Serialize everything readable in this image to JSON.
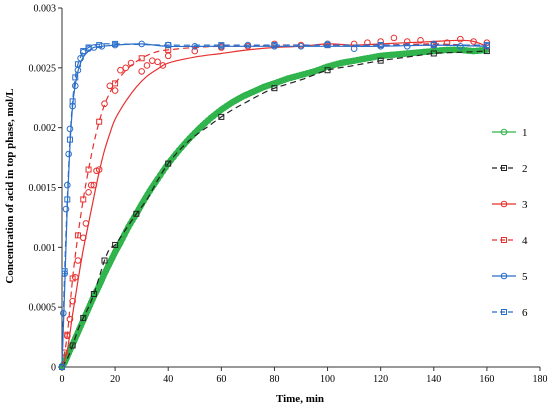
{
  "chart_data": {
    "type": "line",
    "xlabel": "Time, min",
    "ylabel": "Concentration of  acid in top phase, mol/L",
    "xlim": [
      0,
      180
    ],
    "ylim": [
      0,
      0.003
    ],
    "x_ticks": [
      "0",
      "20",
      "40",
      "60",
      "80",
      "100",
      "120",
      "140",
      "160",
      "180"
    ],
    "y_ticks": [
      "0",
      "0.0005",
      "0.001",
      "0.0015",
      "0.002",
      "0.0025",
      "0.003"
    ],
    "legend_position": "right",
    "series": [
      {
        "name": "1",
        "color": "#2db34a",
        "dash": "solid",
        "marker": "circle",
        "dense": true,
        "points": [
          [
            0,
            0
          ],
          [
            1,
            4e-05
          ],
          [
            2,
            9e-05
          ],
          [
            4,
            0.00019
          ],
          [
            6,
            0.00029
          ],
          [
            8,
            0.00039
          ],
          [
            10,
            0.00049
          ],
          [
            12,
            0.00059
          ],
          [
            14,
            0.00068
          ],
          [
            16,
            0.00078
          ],
          [
            18,
            0.00087
          ],
          [
            20,
            0.00096
          ],
          [
            22,
            0.00104
          ],
          [
            25,
            0.00117
          ],
          [
            28,
            0.00128
          ],
          [
            30,
            0.00136
          ],
          [
            33,
            0.00147
          ],
          [
            36,
            0.00157
          ],
          [
            40,
            0.0017
          ],
          [
            44,
            0.00181
          ],
          [
            48,
            0.00191
          ],
          [
            52,
            0.002
          ],
          [
            56,
            0.00208
          ],
          [
            60,
            0.00215
          ],
          [
            64,
            0.00221
          ],
          [
            68,
            0.00226
          ],
          [
            72,
            0.0023
          ],
          [
            76,
            0.00234
          ],
          [
            80,
            0.00237
          ],
          [
            85,
            0.00241
          ],
          [
            90,
            0.00244
          ],
          [
            95,
            0.00247
          ],
          [
            100,
            0.00251
          ],
          [
            105,
            0.00254
          ],
          [
            110,
            0.00256
          ],
          [
            115,
            0.00258
          ],
          [
            120,
            0.0026
          ],
          [
            125,
            0.00261
          ],
          [
            130,
            0.00262
          ],
          [
            135,
            0.00263
          ],
          [
            140,
            0.00264
          ],
          [
            145,
            0.00265
          ],
          [
            150,
            0.00265
          ],
          [
            155,
            0.00264
          ],
          [
            160,
            0.00265
          ]
        ]
      },
      {
        "name": "2",
        "color": "#222222",
        "dash": "dashed",
        "marker": "square",
        "dense": false,
        "points": [
          [
            0,
            0
          ],
          [
            2,
            7e-05
          ],
          [
            4,
            0.00018
          ],
          [
            6,
            0.00031
          ],
          [
            8,
            0.00041
          ],
          [
            10,
            0.0005
          ],
          [
            12,
            0.00061
          ],
          [
            14,
            0.00075
          ],
          [
            16,
            0.00089
          ],
          [
            18,
            0.00099
          ],
          [
            20,
            0.00102
          ],
          [
            24,
            0.00115
          ],
          [
            28,
            0.00128
          ],
          [
            32,
            0.0014
          ],
          [
            36,
            0.00156
          ],
          [
            40,
            0.0017
          ],
          [
            45,
            0.00183
          ],
          [
            50,
            0.00193
          ],
          [
            55,
            0.00201
          ],
          [
            60,
            0.00209
          ],
          [
            65,
            0.00216
          ],
          [
            70,
            0.00222
          ],
          [
            75,
            0.00228
          ],
          [
            80,
            0.00233
          ],
          [
            90,
            0.0024
          ],
          [
            100,
            0.00248
          ],
          [
            110,
            0.00252
          ],
          [
            120,
            0.00256
          ],
          [
            130,
            0.00259
          ],
          [
            140,
            0.00262
          ],
          [
            150,
            0.00263
          ],
          [
            160,
            0.00264
          ]
        ],
        "marker_points": [
          [
            0,
            0
          ],
          [
            4,
            0.00018
          ],
          [
            8,
            0.00041
          ],
          [
            12,
            0.00061
          ],
          [
            16,
            0.00089
          ],
          [
            20,
            0.00102
          ],
          [
            28,
            0.00128
          ],
          [
            40,
            0.0017
          ],
          [
            60,
            0.00209
          ],
          [
            80,
            0.00233
          ],
          [
            100,
            0.00248
          ],
          [
            120,
            0.00256
          ],
          [
            140,
            0.00262
          ],
          [
            160,
            0.00264
          ]
        ]
      },
      {
        "name": "3",
        "color": "#e8302e",
        "dash": "solid",
        "marker": "circle",
        "dense": false,
        "points": [
          [
            0,
            0
          ],
          [
            2,
            0.00014
          ],
          [
            4,
            0.00044
          ],
          [
            6,
            0.00072
          ],
          [
            8,
            0.00098
          ],
          [
            10,
            0.0012
          ],
          [
            12,
            0.00142
          ],
          [
            14,
            0.00163
          ],
          [
            16,
            0.00181
          ],
          [
            18,
            0.00195
          ],
          [
            20,
            0.00207
          ],
          [
            24,
            0.00222
          ],
          [
            28,
            0.00234
          ],
          [
            32,
            0.00243
          ],
          [
            36,
            0.00249
          ],
          [
            40,
            0.00254
          ],
          [
            50,
            0.00259
          ],
          [
            60,
            0.00262
          ],
          [
            70,
            0.00265
          ],
          [
            80,
            0.00267
          ],
          [
            90,
            0.00268
          ],
          [
            100,
            0.0027
          ],
          [
            110,
            0.00269
          ],
          [
            120,
            0.0027
          ],
          [
            130,
            0.00271
          ],
          [
            140,
            0.00272
          ],
          [
            150,
            0.00273
          ],
          [
            155,
            0.00272
          ],
          [
            160,
            0.00268
          ]
        ],
        "marker_points": [
          [
            0,
            0
          ],
          [
            1,
            0.00012
          ],
          [
            2,
            0.00026
          ],
          [
            3,
            0.0004
          ],
          [
            4,
            0.00055
          ],
          [
            5,
            0.00075
          ],
          [
            6,
            0.00089
          ],
          [
            8,
            0.00108
          ],
          [
            9,
            0.0012
          ],
          [
            10,
            0.00146
          ],
          [
            11,
            0.00152
          ],
          [
            12,
            0.00152
          ],
          [
            13,
            0.00164
          ],
          [
            14,
            0.00165
          ],
          [
            16,
            0.0022
          ],
          [
            18,
            0.00235
          ],
          [
            20,
            0.00231
          ],
          [
            22,
            0.00248
          ],
          [
            24,
            0.0025
          ],
          [
            26,
            0.00254
          ],
          [
            30,
            0.00247
          ],
          [
            32,
            0.00252
          ],
          [
            34,
            0.00256
          ],
          [
            36,
            0.00255
          ],
          [
            38,
            0.00252
          ],
          [
            40,
            0.0026
          ],
          [
            50,
            0.00264
          ],
          [
            60,
            0.00267
          ],
          [
            70,
            0.00268
          ],
          [
            80,
            0.0027
          ],
          [
            90,
            0.00269
          ],
          [
            100,
            0.0027
          ],
          [
            110,
            0.0027
          ],
          [
            115,
            0.00271
          ],
          [
            120,
            0.00272
          ],
          [
            125,
            0.00275
          ],
          [
            130,
            0.00272
          ],
          [
            135,
            0.00273
          ],
          [
            140,
            0.00269
          ],
          [
            145,
            0.00271
          ],
          [
            150,
            0.00274
          ],
          [
            155,
            0.00272
          ],
          [
            160,
            0.00271
          ]
        ]
      },
      {
        "name": "4",
        "color": "#e8302e",
        "dash": "dashed",
        "marker": "square",
        "dense": false,
        "points": [
          [
            0,
            0
          ],
          [
            2,
            0.00027
          ],
          [
            4,
            0.00074
          ],
          [
            6,
            0.0011
          ],
          [
            8,
            0.0014
          ],
          [
            10,
            0.00165
          ],
          [
            12,
            0.00187
          ],
          [
            14,
            0.00205
          ],
          [
            16,
            0.00219
          ],
          [
            18,
            0.00229
          ],
          [
            20,
            0.00237
          ],
          [
            25,
            0.0025
          ],
          [
            30,
            0.00258
          ],
          [
            35,
            0.00263
          ],
          [
            40,
            0.00265
          ],
          [
            50,
            0.00267
          ],
          [
            60,
            0.00268
          ],
          [
            70,
            0.00268
          ],
          [
            80,
            0.00269
          ],
          [
            100,
            0.00269
          ],
          [
            120,
            0.00269
          ],
          [
            140,
            0.0027
          ],
          [
            160,
            0.00268
          ]
        ],
        "marker_points": [
          [
            0,
            0
          ],
          [
            2,
            0.00027
          ],
          [
            4,
            0.00074
          ],
          [
            6,
            0.0011
          ],
          [
            8,
            0.0014
          ],
          [
            10,
            0.00165
          ],
          [
            14,
            0.00205
          ],
          [
            20,
            0.00237
          ],
          [
            30,
            0.00258
          ],
          [
            40,
            0.00265
          ],
          [
            60,
            0.00268
          ],
          [
            80,
            0.00269
          ],
          [
            100,
            0.00269
          ],
          [
            120,
            0.00269
          ],
          [
            140,
            0.0027
          ],
          [
            160,
            0.00268
          ]
        ]
      },
      {
        "name": "5",
        "color": "#2a6ec9",
        "dash": "solid",
        "marker": "circle",
        "dense": false,
        "points": [
          [
            0,
            0
          ],
          [
            1,
            0.00065
          ],
          [
            2,
            0.00135
          ],
          [
            3,
            0.00185
          ],
          [
            4,
            0.00218
          ],
          [
            5,
            0.00236
          ],
          [
            6,
            0.00247
          ],
          [
            7,
            0.00254
          ],
          [
            8,
            0.00259
          ],
          [
            10,
            0.00264
          ],
          [
            12,
            0.00267
          ],
          [
            15,
            0.00268
          ],
          [
            20,
            0.00269
          ],
          [
            30,
            0.0027
          ],
          [
            40,
            0.00268
          ],
          [
            60,
            0.00268
          ],
          [
            80,
            0.00268
          ],
          [
            100,
            0.00268
          ],
          [
            120,
            0.00268
          ],
          [
            140,
            0.00269
          ],
          [
            160,
            0.00268
          ]
        ],
        "marker_points": [
          [
            0,
            0
          ],
          [
            0.5,
            0.00045
          ],
          [
            1,
            0.00078
          ],
          [
            1.5,
            0.00132
          ],
          [
            2,
            0.00152
          ],
          [
            2.5,
            0.00178
          ],
          [
            3,
            0.00199
          ],
          [
            4,
            0.00218
          ],
          [
            5,
            0.00235
          ],
          [
            6,
            0.00248
          ],
          [
            7,
            0.00258
          ],
          [
            8,
            0.00263
          ],
          [
            10,
            0.00266
          ],
          [
            12,
            0.00267
          ],
          [
            15,
            0.00268
          ],
          [
            20,
            0.00269
          ],
          [
            30,
            0.0027
          ],
          [
            40,
            0.00269
          ],
          [
            50,
            0.00268
          ],
          [
            60,
            0.00268
          ],
          [
            70,
            0.00269
          ],
          [
            80,
            0.00268
          ],
          [
            90,
            0.00268
          ],
          [
            100,
            0.0027
          ],
          [
            110,
            0.00266
          ],
          [
            120,
            0.00268
          ],
          [
            130,
            0.00268
          ],
          [
            140,
            0.0027
          ],
          [
            150,
            0.00268
          ],
          [
            160,
            0.00268
          ]
        ]
      },
      {
        "name": "6",
        "color": "#2a6ec9",
        "dash": "dashed",
        "marker": "square",
        "dense": false,
        "points": [
          [
            0,
            0
          ],
          [
            1,
            0.0008
          ],
          [
            2,
            0.0014
          ],
          [
            3,
            0.0019
          ],
          [
            4,
            0.00222
          ],
          [
            5,
            0.00242
          ],
          [
            6,
            0.00253
          ],
          [
            7,
            0.00259
          ],
          [
            8,
            0.00264
          ],
          [
            10,
            0.00267
          ],
          [
            12,
            0.00269
          ],
          [
            15,
            0.0027
          ],
          [
            20,
            0.0027
          ],
          [
            40,
            0.00269
          ],
          [
            60,
            0.00269
          ],
          [
            80,
            0.00269
          ],
          [
            100,
            0.00269
          ],
          [
            120,
            0.00269
          ],
          [
            140,
            0.00269
          ],
          [
            160,
            0.00269
          ]
        ],
        "marker_points": [
          [
            0,
            0
          ],
          [
            1,
            0.0008
          ],
          [
            2,
            0.0014
          ],
          [
            3,
            0.0019
          ],
          [
            4,
            0.00222
          ],
          [
            5,
            0.00242
          ],
          [
            6,
            0.00253
          ],
          [
            8,
            0.00264
          ],
          [
            10,
            0.00267
          ],
          [
            14,
            0.00269
          ],
          [
            20,
            0.0027
          ],
          [
            40,
            0.00269
          ],
          [
            60,
            0.00269
          ],
          [
            80,
            0.00269
          ],
          [
            100,
            0.00269
          ],
          [
            120,
            0.00269
          ],
          [
            140,
            0.00269
          ],
          [
            160,
            0.00269
          ]
        ]
      }
    ]
  }
}
